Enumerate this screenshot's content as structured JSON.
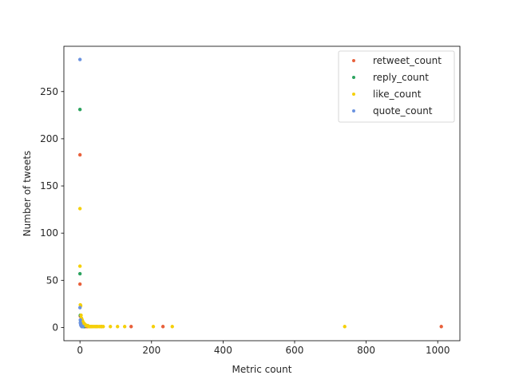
{
  "chart_data": {
    "type": "scatter",
    "xlabel": "Metric count",
    "ylabel": "Number of tweets",
    "xlim": [
      -45,
      1062
    ],
    "ylim": [
      -14,
      298
    ],
    "xticks": [
      0,
      200,
      400,
      600,
      800,
      1000
    ],
    "yticks": [
      0,
      50,
      100,
      150,
      200,
      250
    ],
    "grid": false,
    "legend_position": "top-right",
    "series": [
      {
        "name": "retweet_count",
        "color": "#e8613c",
        "points": [
          [
            0,
            183
          ],
          [
            0,
            46
          ],
          [
            1,
            12
          ],
          [
            2,
            8
          ],
          [
            3,
            6
          ],
          [
            4,
            5
          ],
          [
            5,
            4
          ],
          [
            6,
            3
          ],
          [
            8,
            3
          ],
          [
            10,
            2
          ],
          [
            12,
            2
          ],
          [
            15,
            1
          ],
          [
            20,
            1
          ],
          [
            30,
            1
          ],
          [
            45,
            1
          ],
          [
            60,
            1
          ],
          [
            143,
            1
          ],
          [
            232,
            1
          ],
          [
            1010,
            1
          ]
        ]
      },
      {
        "name": "reply_count",
        "color": "#2ca35f",
        "points": [
          [
            0,
            231
          ],
          [
            0,
            57
          ],
          [
            1,
            13
          ],
          [
            2,
            6
          ],
          [
            3,
            4
          ],
          [
            4,
            3
          ],
          [
            5,
            2
          ],
          [
            6,
            2
          ],
          [
            8,
            1
          ],
          [
            10,
            1
          ],
          [
            12,
            1
          ]
        ]
      },
      {
        "name": "like_count",
        "color": "#f5d00a",
        "points": [
          [
            0,
            126
          ],
          [
            0,
            65
          ],
          [
            1,
            24
          ],
          [
            2,
            23
          ],
          [
            3,
            13
          ],
          [
            4,
            10
          ],
          [
            5,
            9
          ],
          [
            6,
            8
          ],
          [
            7,
            7
          ],
          [
            8,
            6
          ],
          [
            9,
            5
          ],
          [
            10,
            5
          ],
          [
            11,
            4
          ],
          [
            12,
            4
          ],
          [
            13,
            3
          ],
          [
            14,
            3
          ],
          [
            15,
            3
          ],
          [
            16,
            2
          ],
          [
            18,
            2
          ],
          [
            20,
            2
          ],
          [
            22,
            2
          ],
          [
            24,
            1
          ],
          [
            26,
            1
          ],
          [
            28,
            1
          ],
          [
            30,
            1
          ],
          [
            33,
            1
          ],
          [
            36,
            1
          ],
          [
            40,
            1
          ],
          [
            45,
            1
          ],
          [
            50,
            1
          ],
          [
            55,
            1
          ],
          [
            60,
            1
          ],
          [
            65,
            1
          ],
          [
            85,
            1
          ],
          [
            105,
            1
          ],
          [
            125,
            1
          ],
          [
            205,
            1
          ],
          [
            258,
            1
          ],
          [
            740,
            1
          ]
        ]
      },
      {
        "name": "quote_count",
        "color": "#6b93e0",
        "points": [
          [
            0,
            284
          ],
          [
            0,
            21
          ],
          [
            1,
            8
          ],
          [
            1,
            5
          ],
          [
            2,
            4
          ],
          [
            2,
            3
          ],
          [
            3,
            2
          ],
          [
            4,
            2
          ],
          [
            5,
            1
          ],
          [
            6,
            1
          ],
          [
            7,
            1
          ],
          [
            8,
            1
          ]
        ]
      }
    ]
  }
}
